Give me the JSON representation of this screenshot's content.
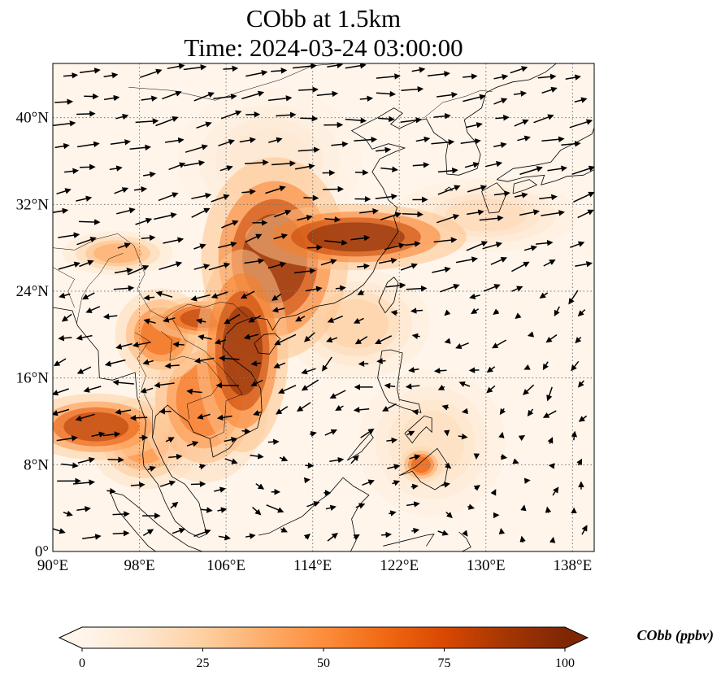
{
  "title": {
    "line1": "CObb at 1.5km",
    "line2": "Time: 2024-03-24 03:00:00"
  },
  "map": {
    "lon_range": [
      90,
      140
    ],
    "lat_range": [
      0,
      45
    ],
    "lon_ticks": [
      {
        "value": 90,
        "label": "90°E"
      },
      {
        "value": 98,
        "label": "98°E"
      },
      {
        "value": 106,
        "label": "106°E"
      },
      {
        "value": 114,
        "label": "114°E"
      },
      {
        "value": 122,
        "label": "122°E"
      },
      {
        "value": 130,
        "label": "130°E"
      },
      {
        "value": 138,
        "label": "138°E"
      }
    ],
    "lat_ticks": [
      {
        "value": 0,
        "label": "0°"
      },
      {
        "value": 8,
        "label": "8°N"
      },
      {
        "value": 16,
        "label": "16°N"
      },
      {
        "value": 24,
        "label": "24°N"
      },
      {
        "value": 32,
        "label": "32°N"
      },
      {
        "value": 40,
        "label": "40°N"
      }
    ],
    "gridlines": true,
    "field": "CObb",
    "plumes": [
      {
        "lon": 110.5,
        "lat": 27.0,
        "rlon": 4.0,
        "rlat": 5.5,
        "value": 100
      },
      {
        "lon": 118.0,
        "lat": 29.0,
        "rlon": 6.0,
        "rlat": 1.8,
        "value": 100
      },
      {
        "lon": 107.5,
        "lat": 18.5,
        "rlon": 2.5,
        "rlat": 5.5,
        "value": 100
      },
      {
        "lon": 104.0,
        "lat": 21.5,
        "rlon": 3.0,
        "rlat": 1.2,
        "value": 85
      },
      {
        "lon": 94.0,
        "lat": 11.5,
        "rlon": 4.0,
        "rlat": 1.8,
        "value": 85
      },
      {
        "lon": 100.0,
        "lat": 20.0,
        "rlon": 2.5,
        "rlat": 2.5,
        "value": 65
      },
      {
        "lon": 104.0,
        "lat": 14.0,
        "rlon": 3.5,
        "rlat": 4.5,
        "value": 60
      },
      {
        "lon": 98.5,
        "lat": 10.0,
        "rlon": 3.0,
        "rlat": 2.5,
        "value": 50
      },
      {
        "lon": 124.0,
        "lat": 8.0,
        "rlon": 1.2,
        "rlat": 1.0,
        "value": 70
      },
      {
        "lon": 96.0,
        "lat": 27.5,
        "rlon": 3.0,
        "rlat": 1.2,
        "value": 40
      },
      {
        "lon": 118.0,
        "lat": 21.0,
        "rlon": 4.0,
        "rlat": 3.0,
        "value": 25
      },
      {
        "lon": 130.0,
        "lat": 31.0,
        "rlon": 5.0,
        "rlat": 2.0,
        "value": 20
      },
      {
        "lon": 110.0,
        "lat": 36.0,
        "rlon": 5.0,
        "rlat": 4.0,
        "value": 12
      },
      {
        "lon": 125.0,
        "lat": 10.0,
        "rlon": 4.0,
        "rlat": 4.0,
        "value": 18
      }
    ]
  },
  "colorbar": {
    "min": 0,
    "max": 100,
    "extend": "both",
    "colors": [
      "#fff5eb",
      "#fee6ce",
      "#fdd0a2",
      "#fdae6b",
      "#fd8d3c",
      "#f16913",
      "#d94801",
      "#a63603",
      "#7f2704"
    ],
    "ticks": [
      {
        "value": 0,
        "label": "0"
      },
      {
        "value": 25,
        "label": "25"
      },
      {
        "value": 50,
        "label": "50"
      },
      {
        "value": 75,
        "label": "75"
      },
      {
        "value": 100,
        "label": "100"
      }
    ],
    "title": "CObb (ppbv)"
  },
  "colors": {
    "gridline": "#777777",
    "coastline": "#000000",
    "wind_vector": "#000000"
  },
  "icons": {
    "wind": "wind-vector-arrow-icon"
  }
}
